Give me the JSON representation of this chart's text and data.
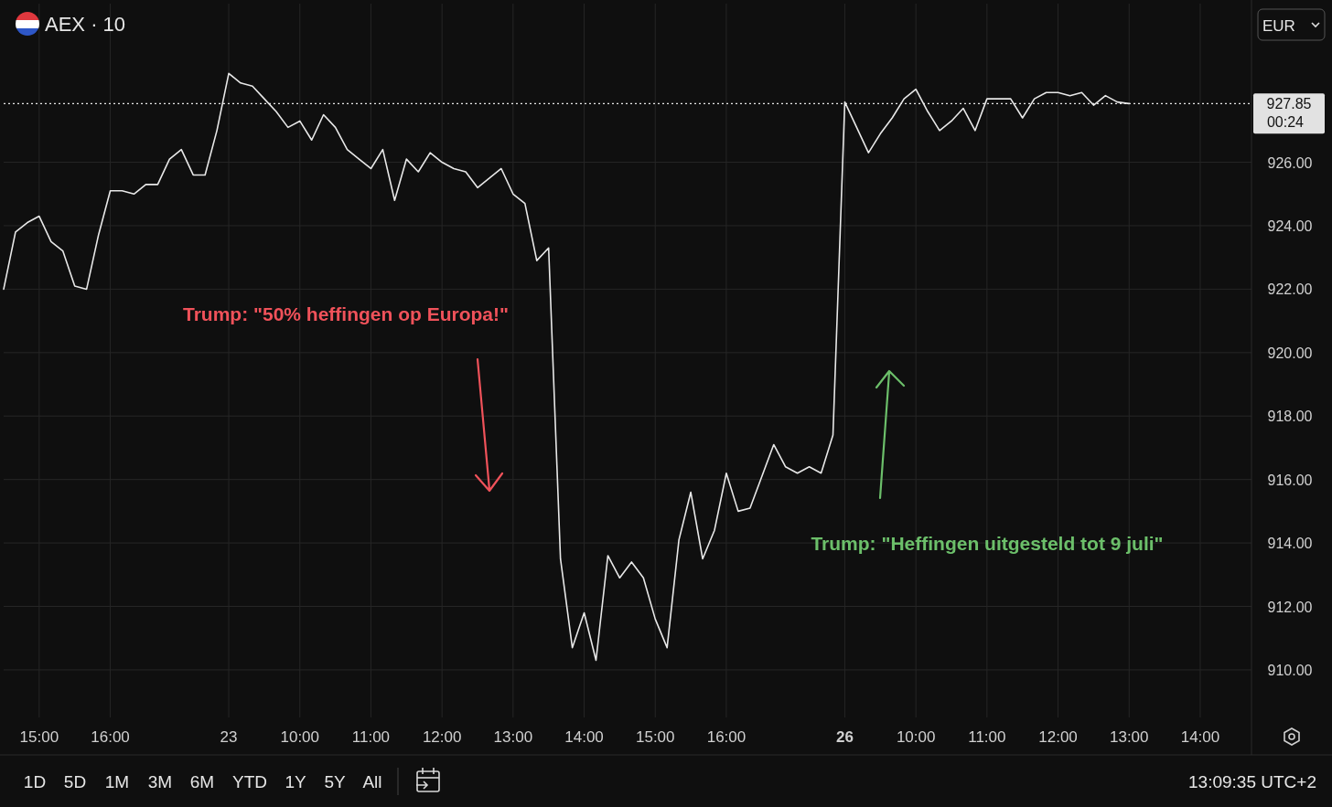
{
  "chart_data": {
    "type": "line",
    "title": "AEX · 10",
    "categories": [
      null,
      null,
      null,
      "15:00",
      null,
      null,
      null,
      null,
      null,
      "16:00",
      null,
      null,
      null,
      null,
      null,
      null,
      null,
      null,
      null,
      "23",
      null,
      null,
      null,
      null,
      null,
      "10:00",
      null,
      null,
      null,
      null,
      null,
      "11:00",
      null,
      null,
      null,
      null,
      null,
      "12:00",
      null,
      null,
      null,
      null,
      null,
      "13:00",
      null,
      null,
      null,
      null,
      null,
      "14:00",
      null,
      null,
      null,
      null,
      null,
      "15:00",
      null,
      null,
      null,
      null,
      null,
      "16:00",
      null,
      null,
      null,
      null,
      null,
      null,
      null,
      null,
      null,
      "26",
      null,
      null,
      null,
      null,
      null,
      "10:00",
      null,
      null,
      null,
      null,
      null,
      "11:00",
      null,
      null,
      null,
      null,
      null,
      "12:00",
      null,
      null,
      null,
      null,
      null,
      "13:00",
      null,
      null,
      null,
      null,
      null,
      "14:00",
      null,
      null,
      null,
      null
    ],
    "series": [
      {
        "color": "#e8e8e8",
        "values": [
          922.0,
          923.8,
          924.1,
          924.3,
          923.5,
          923.2,
          922.1,
          922.0,
          923.7,
          925.1,
          925.1,
          925.0,
          925.3,
          925.3,
          926.1,
          926.4,
          925.6,
          925.6,
          927.0,
          928.8,
          928.5,
          928.4,
          928.0,
          927.6,
          927.1,
          927.3,
          926.7,
          927.5,
          927.1,
          926.4,
          926.1,
          925.8,
          926.4,
          924.8,
          926.1,
          925.7,
          926.3,
          926.0,
          925.8,
          925.7,
          925.2,
          925.5,
          925.8,
          925.0,
          924.7,
          922.9,
          923.3,
          913.5,
          910.7,
          911.8,
          910.3,
          913.6,
          912.9,
          913.4,
          912.9,
          911.6,
          910.7,
          914.1,
          915.6,
          913.5,
          914.4,
          916.2,
          915.0,
          915.1,
          916.1,
          917.1,
          916.4,
          916.2,
          916.4,
          916.2,
          917.4,
          927.9,
          927.1,
          926.3,
          926.9,
          927.4,
          928.0,
          928.3,
          927.6,
          927.0,
          927.3,
          927.7,
          927.0,
          928.0,
          928.0,
          928.0,
          927.4,
          928.0,
          928.2,
          928.2,
          928.1,
          928.2,
          927.8,
          928.1,
          927.9,
          927.85,
          null,
          null,
          null,
          null,
          null,
          null,
          null,
          null,
          null,
          null
        ]
      }
    ],
    "ylim": [
      908.5,
      931
    ],
    "yticks": [
      {
        "value": 910,
        "label": "910.00"
      },
      {
        "value": 912,
        "label": "912.00"
      },
      {
        "value": 914,
        "label": "914.00"
      },
      {
        "value": 916,
        "label": "916.00"
      },
      {
        "value": 918,
        "label": "918.00"
      },
      {
        "value": 920,
        "label": "920.00"
      },
      {
        "value": 922,
        "label": "922.00"
      },
      {
        "value": 924,
        "label": "924.00"
      },
      {
        "value": 926,
        "label": "926.00"
      }
    ],
    "grid": true,
    "marker": "none",
    "line_style": "solid",
    "ref_lines": [
      {
        "axis": "y",
        "value": 927.85,
        "label": "927.85",
        "line_style": "dotted",
        "color": "#e8e8e8"
      }
    ],
    "annotations": [
      "Trump: \"50% heffingen op Europa!\"",
      "Trump: \"Heffingen uitgesteld tot 9 juli\"",
      "00:24",
      "EUR",
      "1D",
      "5D",
      "1M",
      "3M",
      "6M",
      "YTD",
      "1Y",
      "5Y",
      "All",
      "13:09:35 UTC+2"
    ]
  }
}
